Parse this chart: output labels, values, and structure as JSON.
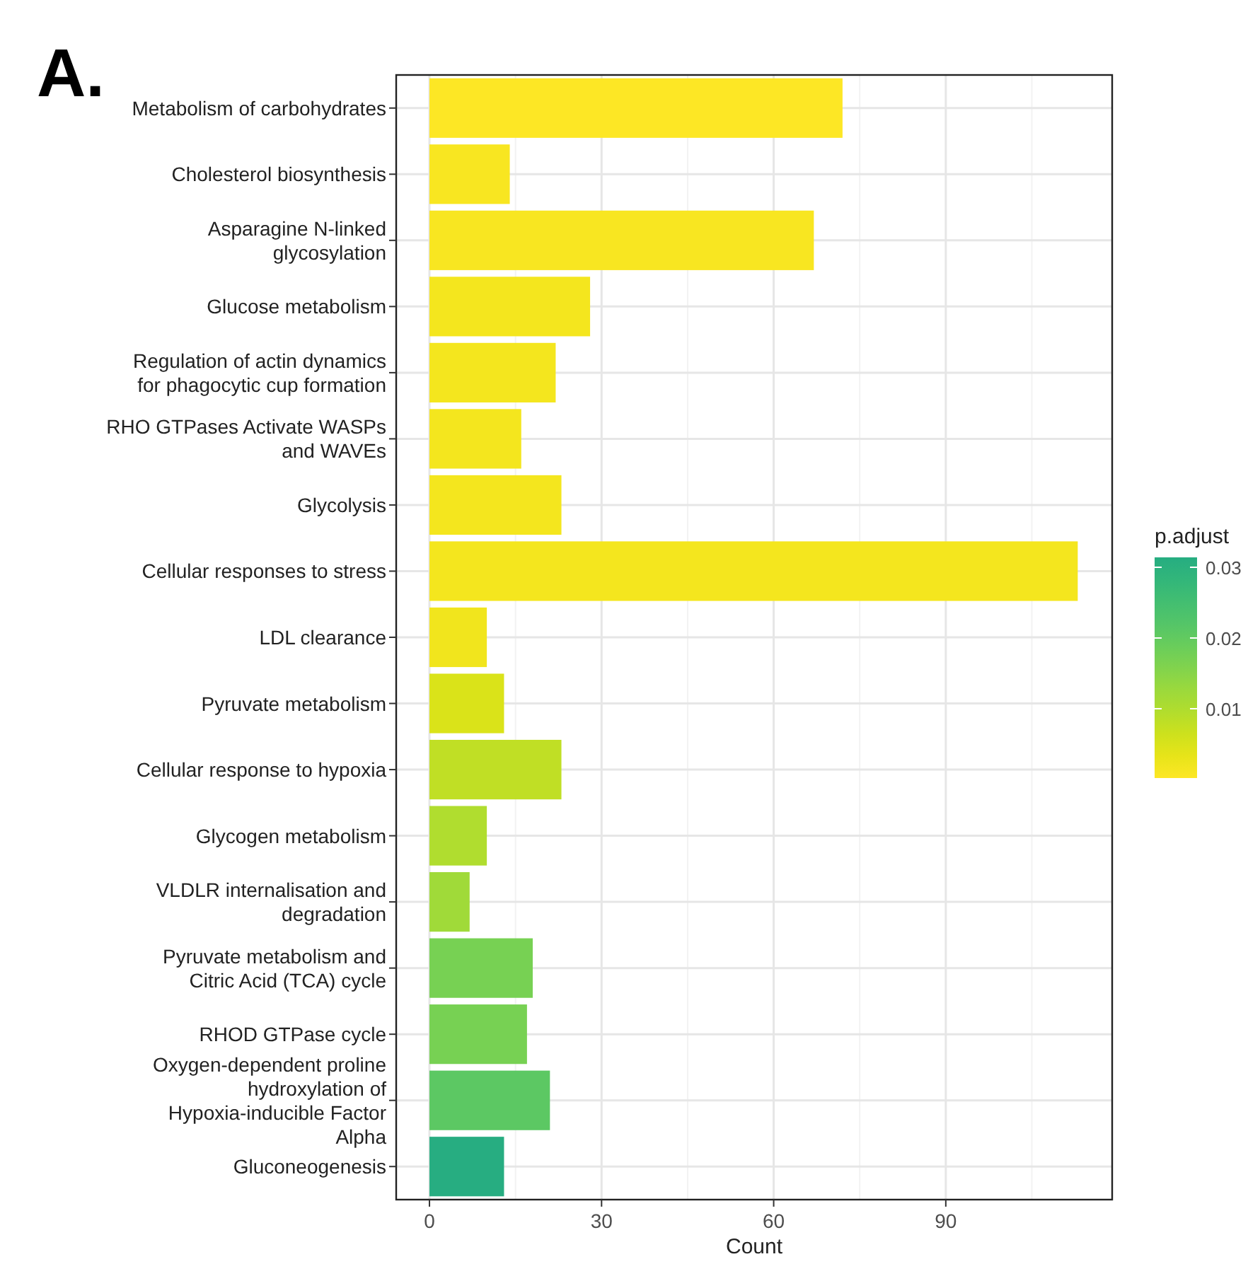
{
  "chart_data": {
    "type": "bar",
    "orientation": "horizontal",
    "xlabel": "Count",
    "clabel": "p.adjust",
    "annotations": [
      "A."
    ],
    "categories": [
      "Metabolism of carbohydrates",
      "Cholesterol biosynthesis",
      "Asparagine N-linked glycosylation",
      "Glucose metabolism",
      "Regulation of actin dynamics for phagocytic cup formation",
      "RHO GTPases Activate WASPs and WAVEs",
      "Glycolysis",
      "Cellular responses to stress",
      "LDL clearance",
      "Pyruvate metabolism",
      "Cellular response to hypoxia",
      "Glycogen metabolism",
      "VLDLR internalisation and degradation",
      "Pyruvate metabolism and Citric Acid (TCA) cycle",
      "RHOD GTPase cycle",
      "Oxygen-dependent proline hydroxylation of Hypoxia-inducible Factor Alpha",
      "Gluconeogenesis"
    ],
    "values": [
      72,
      14,
      67,
      28,
      22,
      16,
      23,
      113,
      10,
      13,
      23,
      10,
      7,
      18,
      17,
      21,
      13
    ],
    "cvalues": [
      0.0005,
      0.001,
      0.001,
      0.0015,
      0.0015,
      0.0015,
      0.0015,
      0.0015,
      0.002,
      0.005,
      0.008,
      0.01,
      0.012,
      0.017,
      0.017,
      0.021,
      0.031
    ],
    "clim": [
      0.0002,
      0.0314
    ],
    "cticks": [
      0.01,
      0.02,
      0.03
    ],
    "xlim": [
      -5.8,
      119
    ],
    "xticks": [
      0,
      30,
      60,
      90
    ],
    "grid": true
  }
}
